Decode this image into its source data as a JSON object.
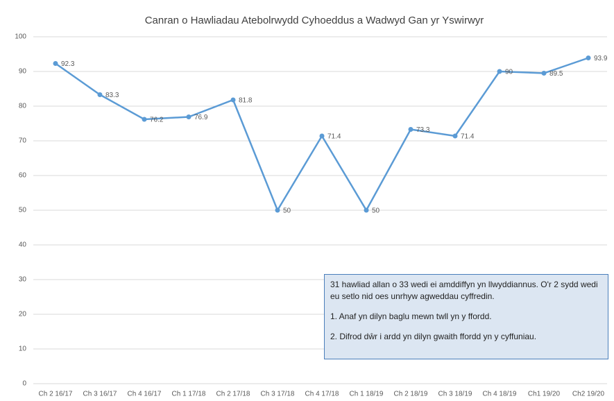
{
  "chart_data": {
    "type": "line",
    "title": "Canran o Hawliadau Atebolrwydd Cyhoeddus a Wadwyd Gan yr Yswirwyr",
    "categories": [
      "Ch 2 16/17",
      "Ch 3 16/17",
      "Ch 4 16/17",
      "Ch 1 17/18",
      "Ch 2 17/18",
      "Ch 3 17/18",
      "Ch 4 17/18",
      "Ch 1 18/19",
      "Ch 2 18/19",
      "Ch 3 18/19",
      "Ch 4 18/19",
      "Ch1 19/20",
      "Ch2 19/20"
    ],
    "series": [
      {
        "name": "Canran",
        "color": "#5b9bd5",
        "values": [
          92.3,
          83.3,
          76.2,
          76.9,
          81.8,
          50,
          71.4,
          50,
          73.3,
          71.4,
          90,
          89.5,
          93.9
        ]
      }
    ],
    "ylim": [
      0,
      100
    ],
    "yticks": [
      0,
      10,
      20,
      30,
      40,
      50,
      60,
      70,
      80,
      90,
      100
    ],
    "grid": true,
    "annotation": [
      "31 hawliad allan o 33 wedi ei amddiffyn yn llwyddiannus. O'r 2 sydd wedi eu setlo nid oes unrhyw agweddau cyffredin.",
      "1. Anaf yn dilyn baglu mewn twll yn y ffordd.",
      "2. Difrod dŵr i ardd yn dilyn gwaith ffordd yn y cyffuniau."
    ]
  }
}
